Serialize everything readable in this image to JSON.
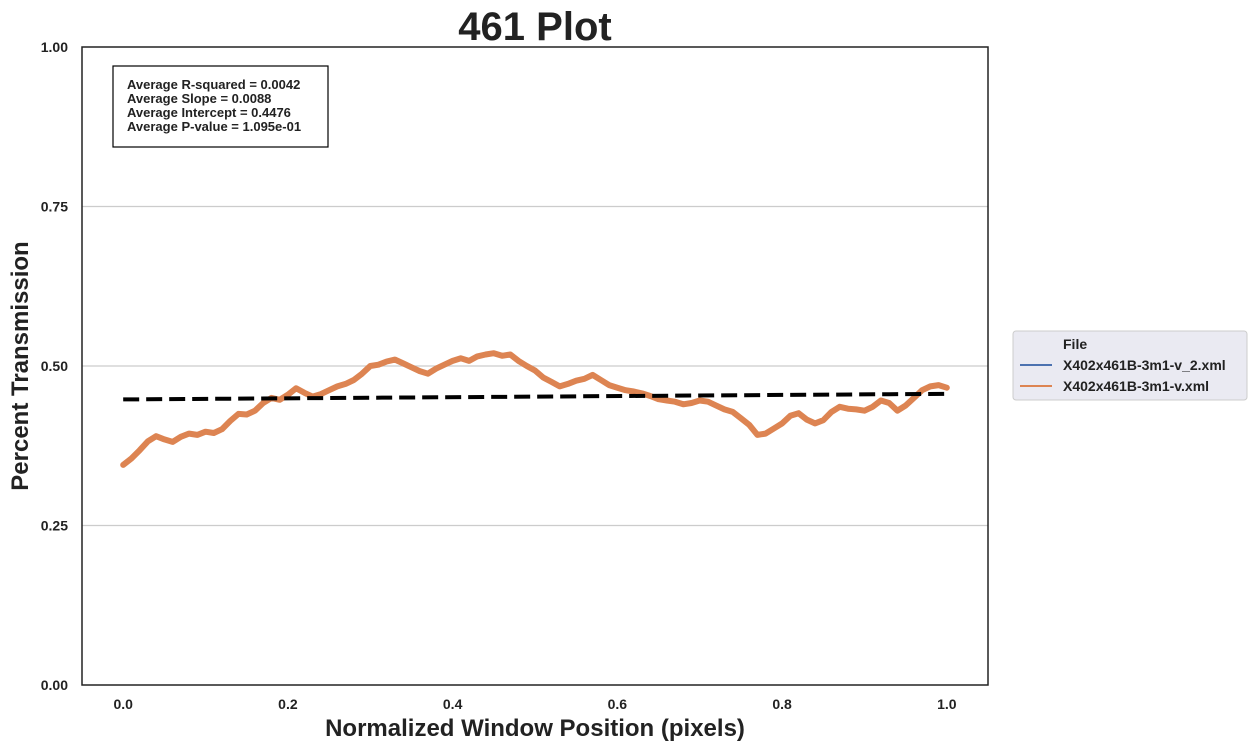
{
  "chart_data": {
    "type": "line",
    "title": "461 Plot",
    "xlabel": "Normalized Window Position (pixels)",
    "ylabel": "Percent Transmission",
    "xlim": [
      -0.05,
      1.05
    ],
    "ylim": [
      0.0,
      1.0
    ],
    "xticks": [
      0.0,
      0.2,
      0.4,
      0.6,
      0.8,
      1.0
    ],
    "xtick_labels": [
      "0.0",
      "0.2",
      "0.4",
      "0.6",
      "0.8",
      "1.0"
    ],
    "yticks": [
      0.0,
      0.25,
      0.5,
      0.75,
      1.0
    ],
    "ytick_labels": [
      "0.00",
      "0.25",
      "0.50",
      "0.75",
      "1.00"
    ],
    "grid": "horizontal",
    "legend": {
      "title": "File",
      "placement": "outside-right",
      "entries": [
        {
          "label": "X402x461B-3m1-v_2.xml",
          "color": "#4c72b0"
        },
        {
          "label": "X402x461B-3m1-v.xml",
          "color": "#dd8452"
        }
      ]
    },
    "series": [
      {
        "name": "X402x461B-3m1-v.xml",
        "color": "#dd8452",
        "x": [
          0.0,
          0.01,
          0.02,
          0.03,
          0.04,
          0.05,
          0.06,
          0.07,
          0.08,
          0.09,
          0.1,
          0.11,
          0.12,
          0.13,
          0.14,
          0.15,
          0.16,
          0.17,
          0.18,
          0.19,
          0.2,
          0.21,
          0.22,
          0.23,
          0.24,
          0.25,
          0.26,
          0.27,
          0.28,
          0.29,
          0.3,
          0.31,
          0.32,
          0.33,
          0.34,
          0.35,
          0.36,
          0.37,
          0.38,
          0.39,
          0.4,
          0.41,
          0.42,
          0.43,
          0.44,
          0.45,
          0.46,
          0.47,
          0.48,
          0.49,
          0.5,
          0.51,
          0.52,
          0.53,
          0.54,
          0.55,
          0.56,
          0.57,
          0.58,
          0.59,
          0.6,
          0.61,
          0.62,
          0.63,
          0.64,
          0.65,
          0.66,
          0.67,
          0.68,
          0.69,
          0.7,
          0.71,
          0.72,
          0.73,
          0.74,
          0.75,
          0.76,
          0.77,
          0.78,
          0.79,
          0.8,
          0.81,
          0.82,
          0.83,
          0.84,
          0.85,
          0.86,
          0.87,
          0.88,
          0.89,
          0.9,
          0.91,
          0.92,
          0.93,
          0.94,
          0.95,
          0.96,
          0.97,
          0.98,
          0.99,
          1.0
        ],
        "y": [
          0.345,
          0.355,
          0.368,
          0.382,
          0.39,
          0.385,
          0.381,
          0.389,
          0.394,
          0.392,
          0.397,
          0.395,
          0.401,
          0.414,
          0.425,
          0.424,
          0.43,
          0.442,
          0.45,
          0.447,
          0.455,
          0.465,
          0.458,
          0.452,
          0.456,
          0.462,
          0.468,
          0.472,
          0.478,
          0.488,
          0.5,
          0.502,
          0.507,
          0.51,
          0.504,
          0.498,
          0.492,
          0.488,
          0.496,
          0.502,
          0.508,
          0.512,
          0.508,
          0.515,
          0.518,
          0.52,
          0.516,
          0.518,
          0.508,
          0.5,
          0.493,
          0.482,
          0.475,
          0.468,
          0.472,
          0.477,
          0.48,
          0.486,
          0.478,
          0.47,
          0.466,
          0.462,
          0.46,
          0.457,
          0.453,
          0.448,
          0.446,
          0.444,
          0.44,
          0.442,
          0.446,
          0.444,
          0.438,
          0.432,
          0.428,
          0.418,
          0.408,
          0.392,
          0.394,
          0.402,
          0.41,
          0.422,
          0.426,
          0.416,
          0.41,
          0.415,
          0.428,
          0.436,
          0.433,
          0.432,
          0.43,
          0.436,
          0.446,
          0.442,
          0.43,
          0.438,
          0.45,
          0.462,
          0.468,
          0.47,
          0.466
        ]
      }
    ],
    "trendline": {
      "slope": 0.0088,
      "intercept": 0.4476,
      "x_range": [
        0.0,
        1.0
      ],
      "style": "dashed",
      "color": "#000000"
    },
    "annotation": {
      "lines": [
        "Average R-squared = 0.0042",
        "Average Slope = 0.0088",
        "Average Intercept = 0.4476",
        "Average P-value = 1.095e-01"
      ]
    }
  }
}
